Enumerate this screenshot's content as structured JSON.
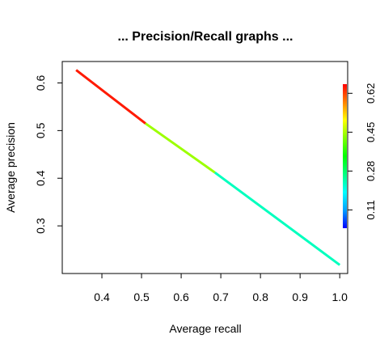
{
  "chart_data": {
    "type": "line",
    "title": "... Precision/Recall graphs ...",
    "xlabel": "Average recall",
    "ylabel": "Average precision",
    "xlim": [
      0.3,
      1.02
    ],
    "ylim": [
      0.2,
      0.645
    ],
    "x_ticks": [
      0.4,
      0.5,
      0.6,
      0.7,
      0.8,
      0.9,
      1.0
    ],
    "x_tick_labels": [
      "0.4",
      "0.5",
      "0.6",
      "0.7",
      "0.8",
      "0.9",
      "1.0"
    ],
    "y_ticks": [
      0.3,
      0.4,
      0.5,
      0.6
    ],
    "y_tick_labels": [
      "0.3",
      "0.4",
      "0.5",
      "0.6"
    ],
    "segments": [
      {
        "x": [
          0.335,
          0.51
        ],
        "y": [
          0.627,
          0.515
        ],
        "color": "#ff1a00"
      },
      {
        "x": [
          0.51,
          0.685
        ],
        "y": [
          0.515,
          0.412
        ],
        "color": "#9cff00"
      },
      {
        "x": [
          0.685,
          1.0
        ],
        "y": [
          0.412,
          0.218
        ],
        "color": "#00ffbe"
      }
    ],
    "colorbar": {
      "range": [
        0.03,
        0.66
      ],
      "ticks": [
        0.11,
        0.28,
        0.45,
        0.62
      ],
      "tick_labels": [
        "0.11",
        "0.28",
        "0.45",
        "0.62"
      ],
      "gradient_colors": [
        "#0000ff",
        "#00a0ff",
        "#00ffff",
        "#00ff80",
        "#00ff00",
        "#80ff00",
        "#ffff00",
        "#ff8000",
        "#ff0000"
      ]
    }
  }
}
